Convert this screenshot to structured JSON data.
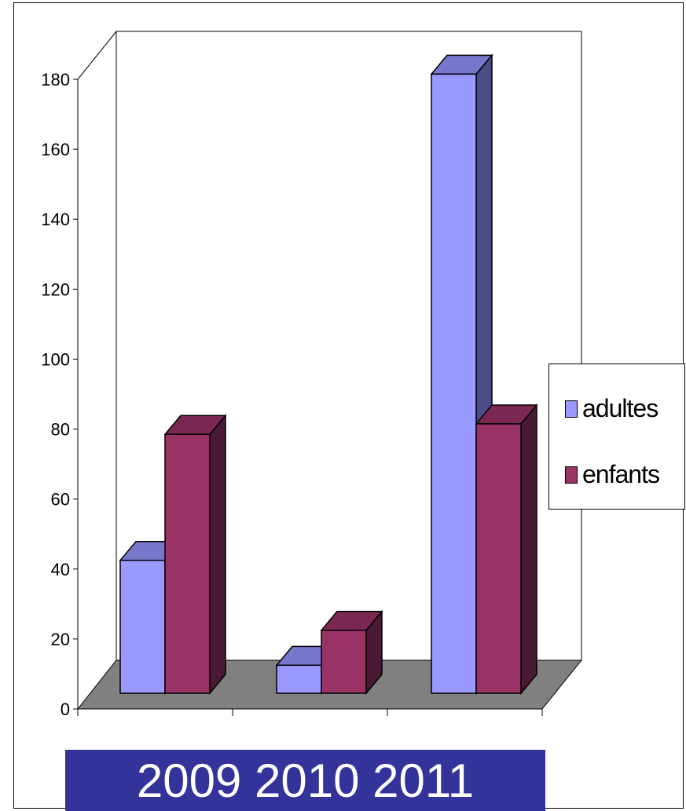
{
  "colors": {
    "adultes": "#9999ff",
    "adultes_top": "#7777cc",
    "adultes_side": "#4c4c88",
    "enfants": "#993366",
    "enfants_top": "#7a2851",
    "enfants_side": "#4a1a32",
    "floor": "#808080",
    "banner": "#333399"
  },
  "banner": {
    "text": "2009 2010 2011"
  },
  "chart_data": {
    "type": "bar",
    "categories": [
      "2009",
      "2010",
      "2011"
    ],
    "series": [
      {
        "name": "adultes",
        "values": [
          38,
          8,
          177
        ]
      },
      {
        "name": "enfants",
        "values": [
          74,
          18,
          77
        ]
      }
    ],
    "ylim": [
      0,
      180
    ],
    "yticks": [
      0,
      20,
      40,
      60,
      80,
      100,
      120,
      140,
      160,
      180
    ],
    "legend": {
      "placement": "right",
      "items": [
        {
          "label": "adultes",
          "color": "#9999ff"
        },
        {
          "label": "enfants",
          "color": "#993366"
        }
      ]
    },
    "grid": false,
    "three_d": true
  }
}
